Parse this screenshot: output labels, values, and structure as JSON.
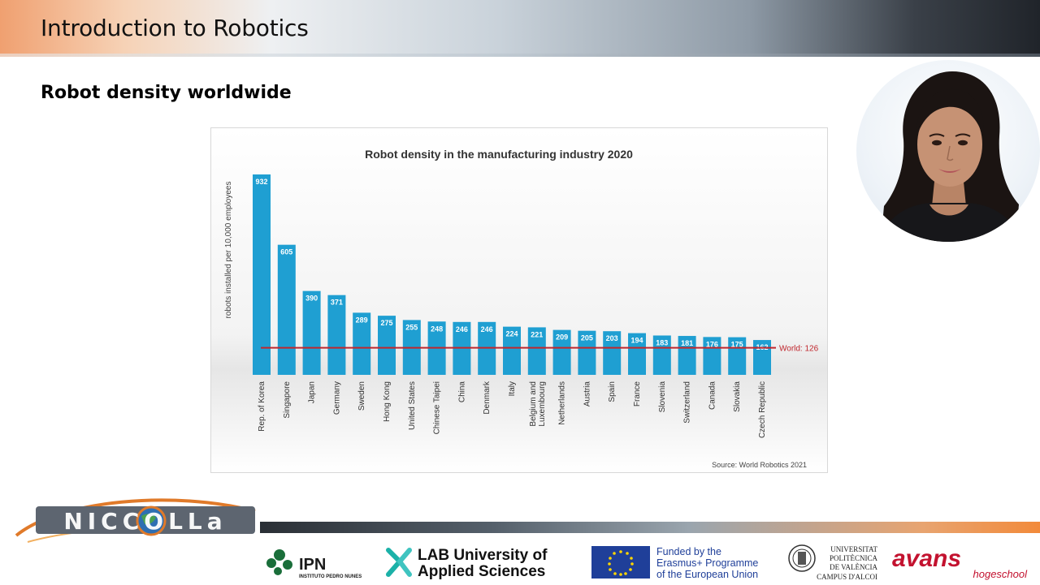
{
  "slide": {
    "title": "Introduction to Robotics",
    "section_title": "Robot density worldwide"
  },
  "chart_data": {
    "type": "bar",
    "title": "Robot density in the manufacturing industry 2020",
    "ylabel": "robots installed per 10,000 employees",
    "xlabel": "",
    "categories": [
      "Rep. of Korea",
      "Singapore",
      "Japan",
      "Germany",
      "Sweden",
      "Hong Kong",
      "United States",
      "Chinese Taipei",
      "China",
      "Denmark",
      "Italy",
      "Belgium and Luxembourg",
      "Netherlands",
      "Austria",
      "Spain",
      "France",
      "Slovenia",
      "Switzerland",
      "Canada",
      "Slovakia",
      "Czech Republic"
    ],
    "values": [
      932,
      605,
      390,
      371,
      289,
      275,
      255,
      248,
      246,
      246,
      224,
      221,
      209,
      205,
      203,
      194,
      183,
      181,
      176,
      175,
      162
    ],
    "reference_line": {
      "value": 126,
      "label": "World: 126",
      "color": "#c0262d"
    },
    "ylim": [
      0,
      932
    ],
    "bar_color": "#1f9fd2",
    "grid": false,
    "source": "Source: World Robotics 2021"
  },
  "logos": {
    "niccolla": "NICCOLLa",
    "ipn_name": "IPN",
    "ipn_sub": "INSTITUTO PEDRO NUNES",
    "lab_line1": "LAB University of",
    "lab_line2": "Applied Sciences",
    "eu_line1": "Funded by the",
    "eu_line2": "Erasmus+ Programme",
    "eu_line3": "of the European Union",
    "upv_line1": "UNIVERSITAT",
    "upv_line2": "POLITÈCNICA",
    "upv_line3": "DE VALÈNCIA",
    "upv_line4": "CAMPUS D'ALCOI",
    "avans_name": "avans",
    "avans_sub": "hogeschool"
  },
  "colors": {
    "accent_orange": "#f28a3a",
    "chart_bar": "#1f9fd2",
    "world_line": "#c0262d"
  }
}
